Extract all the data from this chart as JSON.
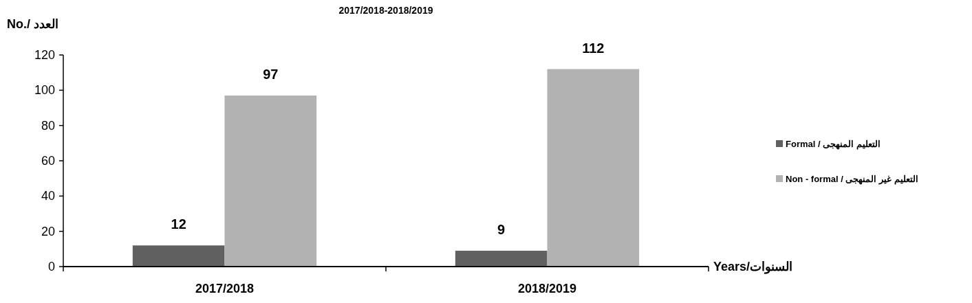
{
  "chart_data": {
    "type": "bar",
    "title": "2017/2018-2018/2019",
    "ylabel": "No./ العدد",
    "xlabel": "Years/السنوات",
    "categories": [
      "2017/2018",
      "2018/2019"
    ],
    "series": [
      {
        "name": "Formal / التعليم المنهجى",
        "color": "#616161",
        "values": [
          12,
          9
        ]
      },
      {
        "name": "Non - formal / التعليم غير المنهجى",
        "color": "#b2b2b2",
        "values": [
          97,
          112
        ]
      }
    ],
    "ylim": [
      0,
      120
    ],
    "yticks": [
      0,
      20,
      40,
      60,
      80,
      100,
      120
    ],
    "data_labels": true,
    "legend": "right",
    "grid": false
  }
}
